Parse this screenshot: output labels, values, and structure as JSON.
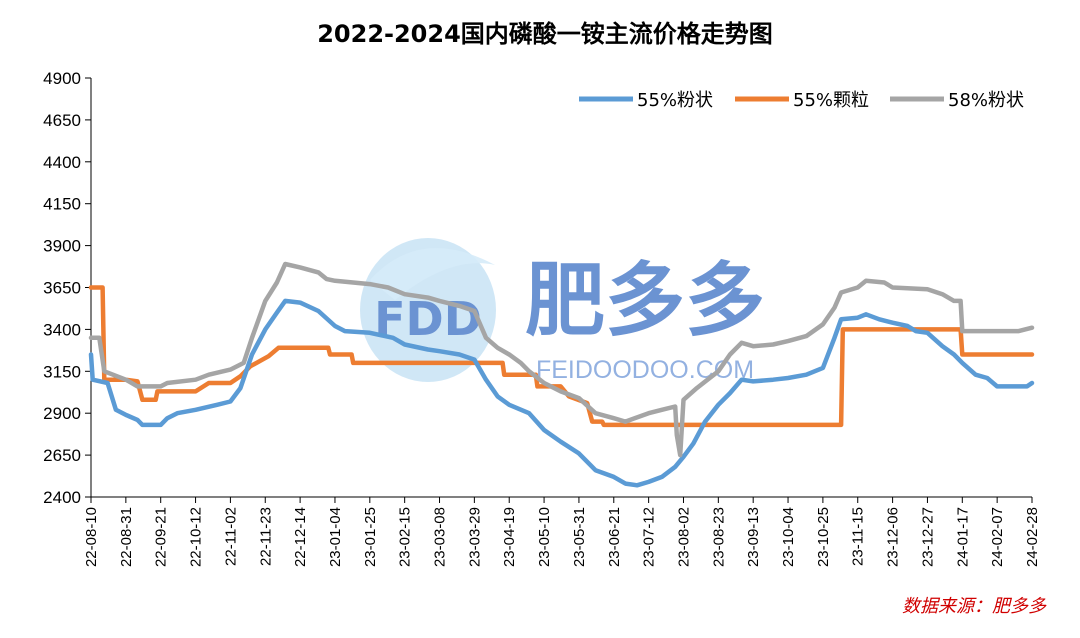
{
  "chart_data": {
    "type": "line",
    "title": "2022-2024国内磷酸一铵主流价格走势图",
    "source_note": "数据来源：肥多多",
    "watermark": {
      "logo_text": "FDD",
      "name": "肥多多",
      "url": "FEIDOODOO.COM"
    },
    "ylim": [
      2400,
      4900
    ],
    "yticks": [
      2400,
      2650,
      2900,
      3150,
      3400,
      3650,
      3900,
      4150,
      4400,
      4650,
      4900
    ],
    "xlim": [
      "2022-08-10",
      "2024-02-28"
    ],
    "xticks": [
      "22-08-10",
      "22-08-31",
      "22-09-21",
      "22-10-12",
      "22-11-02",
      "22-11-23",
      "22-12-14",
      "23-01-04",
      "23-01-25",
      "23-02-15",
      "23-03-08",
      "23-03-29",
      "23-04-19",
      "23-05-10",
      "23-05-31",
      "23-06-21",
      "23-07-12",
      "23-08-02",
      "23-08-23",
      "23-09-13",
      "23-10-04",
      "23-10-25",
      "23-11-15",
      "23-12-06",
      "23-12-27",
      "24-01-17",
      "24-02-07",
      "24-02-28"
    ],
    "legend_position": "top-right",
    "grid": false,
    "series": [
      {
        "name": "55%粉状",
        "color": "#5b9bd5",
        "points": [
          [
            "2022-08-10",
            3250
          ],
          [
            "2022-08-11",
            3100
          ],
          [
            "2022-08-20",
            3080
          ],
          [
            "2022-08-25",
            2920
          ],
          [
            "2022-08-31",
            2890
          ],
          [
            "2022-09-07",
            2860
          ],
          [
            "2022-09-10",
            2830
          ],
          [
            "2022-09-21",
            2830
          ],
          [
            "2022-09-25",
            2870
          ],
          [
            "2022-10-01",
            2900
          ],
          [
            "2022-10-12",
            2920
          ],
          [
            "2022-10-25",
            2950
          ],
          [
            "2022-11-02",
            2970
          ],
          [
            "2022-11-08",
            3050
          ],
          [
            "2022-11-15",
            3250
          ],
          [
            "2022-11-23",
            3400
          ],
          [
            "2022-11-30",
            3500
          ],
          [
            "2022-12-05",
            3570
          ],
          [
            "2022-12-14",
            3560
          ],
          [
            "2022-12-25",
            3510
          ],
          [
            "2023-01-04",
            3420
          ],
          [
            "2023-01-10",
            3390
          ],
          [
            "2023-01-25",
            3380
          ],
          [
            "2023-02-08",
            3350
          ],
          [
            "2023-02-15",
            3310
          ],
          [
            "2023-03-01",
            3280
          ],
          [
            "2023-03-08",
            3270
          ],
          [
            "2023-03-20",
            3250
          ],
          [
            "2023-03-29",
            3220
          ],
          [
            "2023-04-05",
            3100
          ],
          [
            "2023-04-12",
            3000
          ],
          [
            "2023-04-19",
            2950
          ],
          [
            "2023-05-01",
            2900
          ],
          [
            "2023-05-10",
            2800
          ],
          [
            "2023-05-20",
            2730
          ],
          [
            "2023-05-31",
            2660
          ],
          [
            "2023-06-10",
            2560
          ],
          [
            "2023-06-21",
            2520
          ],
          [
            "2023-06-28",
            2480
          ],
          [
            "2023-07-05",
            2470
          ],
          [
            "2023-07-12",
            2490
          ],
          [
            "2023-07-20",
            2520
          ],
          [
            "2023-07-28",
            2580
          ],
          [
            "2023-08-02",
            2640
          ],
          [
            "2023-08-08",
            2720
          ],
          [
            "2023-08-15",
            2850
          ],
          [
            "2023-08-23",
            2950
          ],
          [
            "2023-08-30",
            3020
          ],
          [
            "2023-09-06",
            3100
          ],
          [
            "2023-09-13",
            3090
          ],
          [
            "2023-09-25",
            3100
          ],
          [
            "2023-10-04",
            3110
          ],
          [
            "2023-10-15",
            3130
          ],
          [
            "2023-10-25",
            3170
          ],
          [
            "2023-11-01",
            3350
          ],
          [
            "2023-11-05",
            3460
          ],
          [
            "2023-11-15",
            3470
          ],
          [
            "2023-11-20",
            3490
          ],
          [
            "2023-11-28",
            3460
          ],
          [
            "2023-12-06",
            3440
          ],
          [
            "2023-12-15",
            3420
          ],
          [
            "2023-12-20",
            3390
          ],
          [
            "2023-12-27",
            3380
          ],
          [
            "2024-01-05",
            3300
          ],
          [
            "2024-01-12",
            3250
          ],
          [
            "2024-01-17",
            3200
          ],
          [
            "2024-01-25",
            3130
          ],
          [
            "2024-02-01",
            3110
          ],
          [
            "2024-02-07",
            3060
          ],
          [
            "2024-02-15",
            3060
          ],
          [
            "2024-02-25",
            3060
          ],
          [
            "2024-02-28",
            3080
          ]
        ]
      },
      {
        "name": "55%颗粒",
        "color": "#ed7d31",
        "points": [
          [
            "2022-08-10",
            3650
          ],
          [
            "2022-08-17",
            3650
          ],
          [
            "2022-08-18",
            3100
          ],
          [
            "2022-08-31",
            3100
          ],
          [
            "2022-09-07",
            3090
          ],
          [
            "2022-09-10",
            2980
          ],
          [
            "2022-09-18",
            2980
          ],
          [
            "2022-09-19",
            3030
          ],
          [
            "2022-10-12",
            3030
          ],
          [
            "2022-10-20",
            3080
          ],
          [
            "2022-11-02",
            3080
          ],
          [
            "2022-11-08",
            3120
          ],
          [
            "2022-11-14",
            3180
          ],
          [
            "2022-11-25",
            3240
          ],
          [
            "2022-12-01",
            3290
          ],
          [
            "2022-12-31",
            3290
          ],
          [
            "2023-01-01",
            3250
          ],
          [
            "2023-01-14",
            3250
          ],
          [
            "2023-01-15",
            3200
          ],
          [
            "2023-04-15",
            3200
          ],
          [
            "2023-04-16",
            3130
          ],
          [
            "2023-05-05",
            3130
          ],
          [
            "2023-05-06",
            3060
          ],
          [
            "2023-05-20",
            3060
          ],
          [
            "2023-05-25",
            3000
          ],
          [
            "2023-06-05",
            2960
          ],
          [
            "2023-06-08",
            2850
          ],
          [
            "2023-06-14",
            2850
          ],
          [
            "2023-06-15",
            2830
          ],
          [
            "2023-11-05",
            2830
          ],
          [
            "2023-11-06",
            3400
          ],
          [
            "2024-01-16",
            3400
          ],
          [
            "2024-01-17",
            3250
          ],
          [
            "2024-02-28",
            3250
          ]
        ]
      },
      {
        "name": "58%粉状",
        "color": "#a5a5a5",
        "points": [
          [
            "2022-08-10",
            3350
          ],
          [
            "2022-08-15",
            3350
          ],
          [
            "2022-08-18",
            3150
          ],
          [
            "2022-08-31",
            3100
          ],
          [
            "2022-09-07",
            3060
          ],
          [
            "2022-09-21",
            3060
          ],
          [
            "2022-09-25",
            3080
          ],
          [
            "2022-10-12",
            3100
          ],
          [
            "2022-10-20",
            3130
          ],
          [
            "2022-11-02",
            3160
          ],
          [
            "2022-11-10",
            3200
          ],
          [
            "2022-11-15",
            3350
          ],
          [
            "2022-11-23",
            3570
          ],
          [
            "2022-11-30",
            3680
          ],
          [
            "2022-12-05",
            3790
          ],
          [
            "2022-12-14",
            3770
          ],
          [
            "2022-12-25",
            3740
          ],
          [
            "2022-12-30",
            3700
          ],
          [
            "2023-01-04",
            3690
          ],
          [
            "2023-01-25",
            3670
          ],
          [
            "2023-02-05",
            3650
          ],
          [
            "2023-02-15",
            3610
          ],
          [
            "2023-03-01",
            3590
          ],
          [
            "2023-03-08",
            3570
          ],
          [
            "2023-03-20",
            3540
          ],
          [
            "2023-03-29",
            3510
          ],
          [
            "2023-04-05",
            3350
          ],
          [
            "2023-04-12",
            3290
          ],
          [
            "2023-04-19",
            3250
          ],
          [
            "2023-04-26",
            3200
          ],
          [
            "2023-05-01",
            3150
          ],
          [
            "2023-05-10",
            3080
          ],
          [
            "2023-05-20",
            3030
          ],
          [
            "2023-05-31",
            2990
          ],
          [
            "2023-06-10",
            2900
          ],
          [
            "2023-06-21",
            2870
          ],
          [
            "2023-06-28",
            2850
          ],
          [
            "2023-07-12",
            2900
          ],
          [
            "2023-07-20",
            2920
          ],
          [
            "2023-07-28",
            2940
          ],
          [
            "2023-07-29",
            2770
          ],
          [
            "2023-07-31",
            2650
          ],
          [
            "2023-08-02",
            2980
          ],
          [
            "2023-08-10",
            3050
          ],
          [
            "2023-08-23",
            3150
          ],
          [
            "2023-08-30",
            3250
          ],
          [
            "2023-09-06",
            3320
          ],
          [
            "2023-09-13",
            3300
          ],
          [
            "2023-09-25",
            3310
          ],
          [
            "2023-10-04",
            3330
          ],
          [
            "2023-10-15",
            3360
          ],
          [
            "2023-10-25",
            3430
          ],
          [
            "2023-11-01",
            3530
          ],
          [
            "2023-11-05",
            3620
          ],
          [
            "2023-11-15",
            3650
          ],
          [
            "2023-11-20",
            3690
          ],
          [
            "2023-12-01",
            3680
          ],
          [
            "2023-12-06",
            3650
          ],
          [
            "2023-12-27",
            3640
          ],
          [
            "2024-01-05",
            3610
          ],
          [
            "2024-01-12",
            3570
          ],
          [
            "2024-01-16",
            3570
          ],
          [
            "2024-01-17",
            3390
          ],
          [
            "2024-02-07",
            3390
          ],
          [
            "2024-02-20",
            3390
          ],
          [
            "2024-02-28",
            3410
          ]
        ]
      }
    ]
  }
}
